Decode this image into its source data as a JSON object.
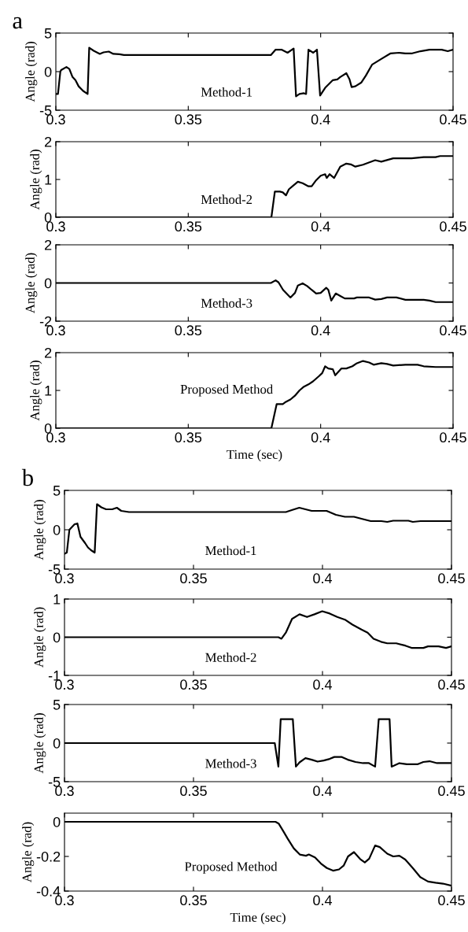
{
  "chart_data": [
    {
      "type": "line",
      "title": "a",
      "ylabel": "Angle (rad)",
      "annotations": [
        "Method-1"
      ],
      "xlim": [
        0.3,
        0.45
      ],
      "ylim": [
        -5,
        5
      ],
      "xticks": [
        0.3,
        0.35,
        0.4,
        0.45
      ],
      "yticks": [
        -5,
        0,
        5
      ],
      "x": [
        0.3,
        0.3008,
        0.3017,
        0.302,
        0.304,
        0.3051,
        0.3063,
        0.3074,
        0.3086,
        0.3103,
        0.312,
        0.3126,
        0.3143,
        0.3166,
        0.318,
        0.32,
        0.3217,
        0.324,
        0.3257,
        0.3812,
        0.383,
        0.3852,
        0.3875,
        0.3898,
        0.3907,
        0.392,
        0.3937,
        0.3945,
        0.3954,
        0.3972,
        0.3986,
        0.3998,
        0.4017,
        0.4046,
        0.4063,
        0.4074,
        0.4097,
        0.4109,
        0.4117,
        0.4131,
        0.4154,
        0.4171,
        0.4194,
        0.4229,
        0.4263,
        0.4297,
        0.432,
        0.4343,
        0.4377,
        0.4411,
        0.4457,
        0.448,
        0.45
      ],
      "series": [
        {
          "color": "#000000",
          "values": [
            -2.9,
            -2.9,
            0,
            0.2,
            0.6,
            0.35,
            -0.7,
            -1.1,
            -1.9,
            -2.5,
            -2.9,
            3.1,
            2.7,
            2.3,
            2.5,
            2.6,
            2.3,
            2.25,
            2.15,
            2.15,
            2.85,
            2.85,
            2.45,
            3.0,
            -3.2,
            -2.9,
            -2.8,
            -2.9,
            2.85,
            2.45,
            2.85,
            -3.1,
            -2.1,
            -1.1,
            -1.0,
            -0.7,
            -0.2,
            -1.0,
            -2.0,
            -1.9,
            -1.4,
            -0.5,
            0.9,
            1.65,
            2.35,
            2.45,
            2.35,
            2.35,
            2.65,
            2.85,
            2.85,
            2.65,
            2.85
          ]
        }
      ]
    },
    {
      "type": "line",
      "ylabel": "Angle (rad)",
      "annotations": [
        "Method-2"
      ],
      "xlim": [
        0.3,
        0.45
      ],
      "ylim": [
        0,
        2
      ],
      "xticks": [
        0.3,
        0.35,
        0.4,
        0.45
      ],
      "yticks": [
        0,
        1,
        2
      ],
      "x": [
        0.3,
        0.3814,
        0.3827,
        0.3846,
        0.3857,
        0.3869,
        0.388,
        0.3897,
        0.3914,
        0.3932,
        0.3954,
        0.3966,
        0.3983,
        0.4,
        0.4017,
        0.4023,
        0.4034,
        0.4051,
        0.4074,
        0.4097,
        0.4114,
        0.4131,
        0.416,
        0.4206,
        0.4229,
        0.4274,
        0.4343,
        0.4389,
        0.4434,
        0.4451,
        0.45
      ],
      "series": [
        {
          "color": "#000000",
          "values": [
            0,
            0,
            0.68,
            0.68,
            0.66,
            0.58,
            0.74,
            0.84,
            0.94,
            0.9,
            0.82,
            0.82,
            0.98,
            1.1,
            1.14,
            1.04,
            1.14,
            1.04,
            1.34,
            1.42,
            1.4,
            1.34,
            1.39,
            1.51,
            1.47,
            1.56,
            1.56,
            1.59,
            1.59,
            1.62,
            1.62
          ]
        }
      ]
    },
    {
      "type": "line",
      "ylabel": "Angle (rad)",
      "annotations": [
        "Method-3"
      ],
      "xlim": [
        0.3,
        0.45
      ],
      "ylim": [
        -2,
        2
      ],
      "xticks": [
        0.3,
        0.35,
        0.4,
        0.45
      ],
      "yticks": [
        -2,
        0,
        2
      ],
      "x": [
        0.3,
        0.3812,
        0.383,
        0.3841,
        0.3858,
        0.3886,
        0.3903,
        0.3914,
        0.3932,
        0.3949,
        0.3966,
        0.3983,
        0.4,
        0.4021,
        0.4029,
        0.404,
        0.4057,
        0.4074,
        0.4091,
        0.4126,
        0.4137,
        0.4183,
        0.4206,
        0.4229,
        0.4251,
        0.4286,
        0.432,
        0.4389,
        0.4411,
        0.4434,
        0.45
      ],
      "series": [
        {
          "color": "#000000",
          "values": [
            0,
            0,
            0.14,
            0.03,
            -0.36,
            -0.76,
            -0.52,
            -0.13,
            -0.02,
            -0.16,
            -0.36,
            -0.55,
            -0.52,
            -0.25,
            -0.36,
            -0.92,
            -0.55,
            -0.68,
            -0.81,
            -0.81,
            -0.76,
            -0.76,
            -0.87,
            -0.84,
            -0.76,
            -0.76,
            -0.88,
            -0.88,
            -0.92,
            -1.0,
            -1.0
          ]
        }
      ]
    },
    {
      "type": "line",
      "ylabel": "Angle (rad)",
      "xlabel": "Time (sec)",
      "annotations": [
        "Proposed Method"
      ],
      "xlim": [
        0.3,
        0.45
      ],
      "ylim": [
        0,
        2
      ],
      "xticks": [
        0.3,
        0.35,
        0.4,
        0.45
      ],
      "yticks": [
        0,
        1,
        2
      ],
      "x": [
        0.3,
        0.3814,
        0.3834,
        0.3857,
        0.3869,
        0.3886,
        0.3903,
        0.392,
        0.3937,
        0.3954,
        0.3971,
        0.3994,
        0.4006,
        0.4017,
        0.4029,
        0.4046,
        0.4055,
        0.4078,
        0.4097,
        0.412,
        0.4137,
        0.416,
        0.4183,
        0.42,
        0.4229,
        0.4251,
        0.4274,
        0.432,
        0.4366,
        0.4389,
        0.4434,
        0.45
      ],
      "series": [
        {
          "color": "#000000",
          "values": [
            0,
            0,
            0.64,
            0.64,
            0.7,
            0.76,
            0.86,
            1.0,
            1.1,
            1.16,
            1.24,
            1.38,
            1.46,
            1.64,
            1.58,
            1.56,
            1.4,
            1.58,
            1.58,
            1.64,
            1.72,
            1.78,
            1.74,
            1.68,
            1.72,
            1.7,
            1.66,
            1.68,
            1.68,
            1.64,
            1.62,
            1.62
          ]
        }
      ]
    },
    {
      "type": "line",
      "title": "b",
      "ylabel": "Angle (rad)",
      "annotations": [
        "Method-1"
      ],
      "xlim": [
        0.3,
        0.45
      ],
      "ylim": [
        -5,
        5
      ],
      "xticks": [
        0.3,
        0.35,
        0.4,
        0.45
      ],
      "yticks": [
        -5,
        0,
        5
      ],
      "x": [
        0.3,
        0.3009,
        0.3019,
        0.3039,
        0.305,
        0.3062,
        0.308,
        0.3091,
        0.3103,
        0.3117,
        0.3126,
        0.3143,
        0.3161,
        0.3185,
        0.3203,
        0.322,
        0.325,
        0.3858,
        0.3881,
        0.391,
        0.3934,
        0.3958,
        0.4016,
        0.4052,
        0.4087,
        0.4122,
        0.4157,
        0.4187,
        0.4228,
        0.4251,
        0.4274,
        0.4333,
        0.435,
        0.438,
        0.45
      ],
      "series": [
        {
          "color": "#000000",
          "values": [
            -3.05,
            -2.9,
            0,
            0.7,
            0.8,
            -0.9,
            -1.7,
            -2.25,
            -2.6,
            -2.9,
            3.25,
            2.85,
            2.6,
            2.6,
            2.8,
            2.4,
            2.25,
            2.25,
            2.5,
            2.8,
            2.6,
            2.4,
            2.4,
            1.9,
            1.65,
            1.65,
            1.35,
            1.1,
            1.1,
            1.0,
            1.15,
            1.15,
            1.0,
            1.1,
            1.1
          ]
        }
      ]
    },
    {
      "type": "line",
      "ylabel": "Angle (rad)",
      "annotations": [
        "Method-2"
      ],
      "xlim": [
        0.3,
        0.45
      ],
      "ylim": [
        -1,
        1
      ],
      "xticks": [
        0.3,
        0.35,
        0.4,
        0.45
      ],
      "yticks": [
        -1,
        0,
        1
      ],
      "x": [
        0.3,
        0.3829,
        0.3841,
        0.3858,
        0.3882,
        0.3911,
        0.394,
        0.3969,
        0.3999,
        0.4028,
        0.4057,
        0.4087,
        0.4116,
        0.4151,
        0.4175,
        0.4198,
        0.4227,
        0.4251,
        0.4286,
        0.4321,
        0.4345,
        0.4391,
        0.4409,
        0.445,
        0.4479,
        0.45
      ],
      "series": [
        {
          "color": "#000000",
          "values": [
            0,
            0,
            -0.04,
            0.12,
            0.48,
            0.6,
            0.53,
            0.6,
            0.68,
            0.62,
            0.53,
            0.46,
            0.33,
            0.2,
            0.12,
            -0.04,
            -0.12,
            -0.16,
            -0.16,
            -0.22,
            -0.28,
            -0.28,
            -0.24,
            -0.24,
            -0.28,
            -0.24
          ]
        }
      ]
    },
    {
      "type": "line",
      "ylabel": "Angle (rad)",
      "annotations": [
        "Method-3"
      ],
      "xlim": [
        0.3,
        0.45
      ],
      "ylim": [
        -5,
        5
      ],
      "xticks": [
        0.3,
        0.35,
        0.4,
        0.45
      ],
      "yticks": [
        -5,
        0,
        5
      ],
      "x": [
        0.3,
        0.3815,
        0.3829,
        0.3838,
        0.3885,
        0.3897,
        0.3911,
        0.3934,
        0.3958,
        0.3981,
        0.4005,
        0.4028,
        0.4046,
        0.4075,
        0.4098,
        0.4128,
        0.4157,
        0.418,
        0.4204,
        0.4218,
        0.426,
        0.4268,
        0.4298,
        0.4327,
        0.4368,
        0.4391,
        0.4415,
        0.4444,
        0.45
      ],
      "series": [
        {
          "color": "#000000",
          "values": [
            0,
            0,
            -3.05,
            3.1,
            3.1,
            -3.05,
            -2.5,
            -1.95,
            -2.15,
            -2.4,
            -2.25,
            -2.05,
            -1.8,
            -1.8,
            -2.15,
            -2.45,
            -2.6,
            -2.6,
            -3.05,
            3.1,
            3.1,
            -3.05,
            -2.6,
            -2.75,
            -2.75,
            -2.45,
            -2.35,
            -2.6,
            -2.6
          ]
        }
      ]
    },
    {
      "type": "line",
      "ylabel": "Angle (rad)",
      "xlabel": "Time (sec)",
      "annotations": [
        "Proposed Method"
      ],
      "xlim": [
        0.3,
        0.45
      ],
      "ylim": [
        -0.4,
        0.05
      ],
      "xticks": [
        0.3,
        0.35,
        0.4,
        0.45
      ],
      "yticks": [
        -0.4,
        -0.2,
        0
      ],
      "x": [
        0.3,
        0.3818,
        0.383,
        0.3848,
        0.3865,
        0.3889,
        0.3912,
        0.3936,
        0.3947,
        0.3971,
        0.3994,
        0.4017,
        0.4041,
        0.4064,
        0.4082,
        0.4099,
        0.4122,
        0.4146,
        0.4164,
        0.4181,
        0.4204,
        0.4222,
        0.4251,
        0.4274,
        0.4298,
        0.4321,
        0.435,
        0.4379,
        0.4409,
        0.4438,
        0.4467,
        0.45
      ],
      "series": [
        {
          "color": "#000000",
          "values": [
            0,
            0,
            -0.01,
            -0.054,
            -0.097,
            -0.154,
            -0.189,
            -0.196,
            -0.189,
            -0.206,
            -0.241,
            -0.267,
            -0.282,
            -0.275,
            -0.253,
            -0.2,
            -0.175,
            -0.215,
            -0.235,
            -0.213,
            -0.137,
            -0.146,
            -0.184,
            -0.2,
            -0.196,
            -0.218,
            -0.267,
            -0.319,
            -0.345,
            -0.352,
            -0.357,
            -0.369
          ]
        }
      ]
    }
  ]
}
